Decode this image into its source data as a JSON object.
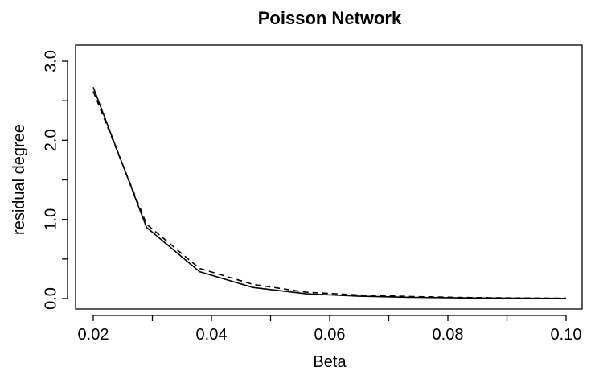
{
  "chart_data": {
    "type": "line",
    "title": "Poisson Network",
    "xlabel": "Beta",
    "ylabel": "residual degree",
    "xlim": [
      0.02,
      0.1
    ],
    "ylim": [
      0.0,
      3.0
    ],
    "xticks": [
      "0.02",
      "0.04",
      "0.06",
      "0.08",
      "0.10"
    ],
    "yticks": [
      "0.0",
      "1.0",
      "2.0",
      "3.0"
    ],
    "x": [
      0.02,
      0.029,
      0.038,
      0.047,
      0.056,
      0.065,
      0.074,
      0.083,
      0.092,
      0.1
    ],
    "series": [
      {
        "style": "solid",
        "values": [
          2.67,
          0.9,
          0.34,
          0.14,
          0.06,
          0.03,
          0.015,
          0.008,
          0.004,
          0.002
        ]
      },
      {
        "style": "dashed",
        "values": [
          2.62,
          0.94,
          0.38,
          0.18,
          0.08,
          0.045,
          0.025,
          0.013,
          0.007,
          0.004
        ]
      }
    ],
    "grid": false,
    "legend": "none"
  }
}
